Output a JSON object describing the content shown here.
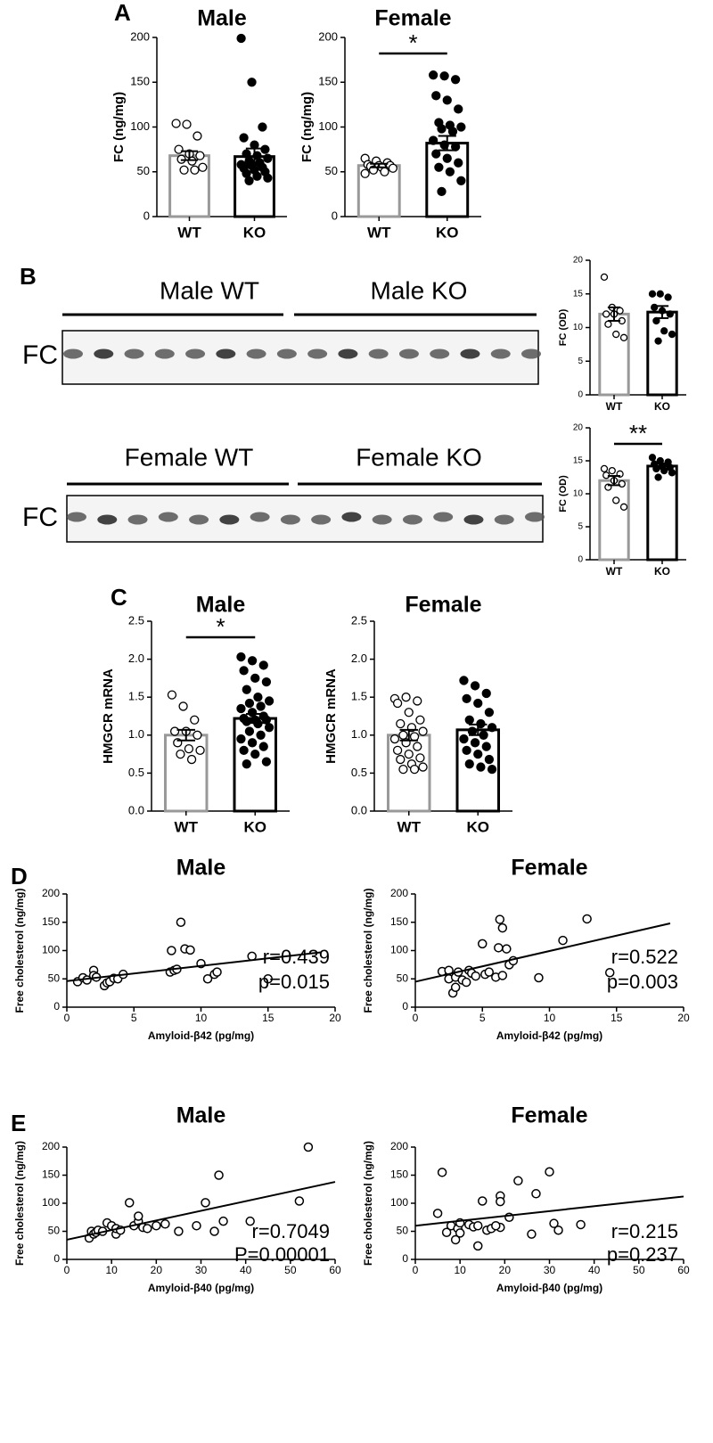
{
  "blots": [
    {
      "labels": [
        "Male WT",
        "Male KO"
      ],
      "row_label": "FC"
    },
    {
      "labels": [
        "Female WT",
        "Female KO"
      ],
      "row_label": "FC"
    }
  ],
  "chart_data": [
    {
      "type": "bar",
      "panel": "A",
      "title": "Male",
      "ylabel": "FC (ng/mg)",
      "categories": [
        "WT",
        "KO"
      ],
      "values": [
        68,
        67
      ],
      "errors": [
        5,
        9
      ],
      "points": [
        [
          104,
          103,
          90,
          75,
          70,
          68,
          64,
          62,
          55,
          52,
          52
        ],
        [
          199,
          150,
          100,
          88,
          80,
          75,
          70,
          68,
          65,
          62,
          60,
          58,
          57,
          55,
          54,
          52,
          50,
          48,
          45,
          43,
          40
        ]
      ],
      "bar_colors": [
        "#999999",
        "#000000"
      ],
      "point_fills": [
        "#ffffff",
        "#000000"
      ],
      "ylim": [
        0,
        200
      ],
      "yticks": [
        0,
        50,
        100,
        150,
        200
      ]
    },
    {
      "type": "bar",
      "title": "Female",
      "ylabel": "FC (ng/mg)",
      "categories": [
        "WT",
        "KO"
      ],
      "values": [
        57,
        82
      ],
      "errors": [
        2,
        8
      ],
      "points": [
        [
          65,
          62,
          60,
          58,
          57,
          57,
          56,
          55,
          54,
          52,
          50,
          48
        ],
        [
          158,
          157,
          153,
          135,
          130,
          120,
          105,
          102,
          100,
          98,
          95,
          85,
          80,
          78,
          70,
          65,
          60,
          55,
          50,
          40,
          28
        ]
      ],
      "bar_colors": [
        "#999999",
        "#000000"
      ],
      "point_fills": [
        "#ffffff",
        "#000000"
      ],
      "significance": "*",
      "ylim": [
        0,
        200
      ],
      "yticks": [
        0,
        50,
        100,
        150,
        200
      ]
    },
    {
      "type": "bar",
      "panel": "B",
      "ylabel": "FC (OD)",
      "categories": [
        "WT",
        "KO"
      ],
      "values": [
        12,
        12.3
      ],
      "errors": [
        1,
        0.9
      ],
      "points": [
        [
          17.5,
          13,
          12.5,
          12,
          12,
          11,
          10.5,
          9,
          8.5
        ],
        [
          15,
          15,
          14.5,
          13,
          12.5,
          12,
          11,
          9.5,
          9,
          8
        ]
      ],
      "bar_colors": [
        "#999999",
        "#000000"
      ],
      "point_fills": [
        "#ffffff",
        "#000000"
      ],
      "ylim": [
        0,
        20
      ],
      "yticks": [
        0,
        5,
        10,
        15,
        20
      ]
    },
    {
      "type": "bar",
      "ylabel": "FC (OD)",
      "categories": [
        "WT",
        "KO"
      ],
      "values": [
        12,
        14.2
      ],
      "errors": [
        0.7,
        0.4
      ],
      "points": [
        [
          13.8,
          13.5,
          13,
          12.8,
          12,
          11.5,
          11,
          9,
          8
        ],
        [
          15.5,
          15,
          14.8,
          14.5,
          14.2,
          14,
          13.8,
          13.5,
          13.2,
          12.5
        ]
      ],
      "bar_colors": [
        "#999999",
        "#000000"
      ],
      "point_fills": [
        "#ffffff",
        "#000000"
      ],
      "significance": "**",
      "ylim": [
        0,
        20
      ],
      "yticks": [
        0,
        5,
        10,
        15,
        20
      ]
    },
    {
      "type": "bar",
      "panel": "C",
      "title": "Male",
      "ylabel": "HMGCR mRNA",
      "categories": [
        "WT",
        "KO"
      ],
      "values": [
        1.0,
        1.22
      ],
      "errors": [
        0.07,
        0.06
      ],
      "points": [
        [
          1.53,
          1.38,
          1.2,
          1.05,
          1.05,
          1.0,
          0.9,
          0.82,
          0.8,
          0.75,
          0.68
        ],
        [
          2.03,
          1.98,
          1.92,
          1.85,
          1.75,
          1.7,
          1.6,
          1.5,
          1.45,
          1.42,
          1.38,
          1.35,
          1.3,
          1.25,
          1.22,
          1.2,
          1.2,
          1.18,
          1.15,
          1.1,
          1.05,
          1.0,
          0.95,
          0.9,
          0.85,
          0.8,
          0.75,
          0.65,
          0.62
        ]
      ],
      "bar_colors": [
        "#999999",
        "#000000"
      ],
      "point_fills": [
        "#ffffff",
        "#000000"
      ],
      "significance": "*",
      "ylim": [
        0,
        2.5
      ],
      "yticks": [
        {
          "value": 0,
          "label": "0.0"
        },
        0.5,
        {
          "value": 1,
          "label": "1.0"
        },
        1.5,
        {
          "value": 2,
          "label": "2.0"
        },
        2.5
      ]
    },
    {
      "type": "bar",
      "title": "Female",
      "ylabel": "HMGCR mRNA",
      "categories": [
        "WT",
        "KO"
      ],
      "values": [
        1.0,
        1.07
      ],
      "errors": [
        0.07,
        0.07
      ],
      "points": [
        [
          1.48,
          1.5,
          1.45,
          1.42,
          1.3,
          1.2,
          1.15,
          1.1,
          1.05,
          1.0,
          0.98,
          0.95,
          0.9,
          0.85,
          0.8,
          0.75,
          0.7,
          0.68,
          0.62,
          0.58,
          0.55,
          0.55
        ],
        [
          1.72,
          1.65,
          1.55,
          1.48,
          1.42,
          1.3,
          1.2,
          1.15,
          1.1,
          1.05,
          1.0,
          0.95,
          0.9,
          0.85,
          0.8,
          0.75,
          0.68,
          0.62,
          0.58,
          0.55
        ]
      ],
      "bar_colors": [
        "#999999",
        "#000000"
      ],
      "point_fills": [
        "#ffffff",
        "#000000"
      ],
      "ylim": [
        0,
        2.5
      ],
      "yticks": [
        {
          "value": 0,
          "label": "0.0"
        },
        0.5,
        {
          "value": 1,
          "label": "1.0"
        },
        1.5,
        {
          "value": 2,
          "label": "2.0"
        },
        2.5
      ]
    },
    {
      "type": "scatter",
      "panel": "D",
      "title": "Male",
      "xlabel": "Amyloid-β42 (pg/mg)",
      "ylabel": "Free cholesterol (ng/mg)",
      "x": [
        0.8,
        1.2,
        1.5,
        2,
        2,
        2.2,
        2.8,
        3,
        3.2,
        3.5,
        3.8,
        4.2,
        7.7,
        7.8,
        8,
        8.2,
        8.5,
        8.8,
        9.2,
        10,
        10.5,
        11,
        11.2,
        13.8,
        15
      ],
      "y": [
        45,
        52,
        48,
        65,
        56,
        53,
        38,
        43,
        45,
        51,
        50,
        58,
        62,
        100,
        65,
        67,
        150,
        103,
        101,
        77,
        50,
        58,
        62,
        90,
        50
      ],
      "fit": {
        "x": [
          0,
          19
        ],
        "y": [
          46,
          97
        ]
      },
      "annotations": [
        "r=0.439",
        "p=0.015"
      ],
      "color": "#000000",
      "xlim": [
        0,
        20
      ],
      "xticks": [
        0,
        5,
        10,
        15,
        20
      ],
      "ylim": [
        0,
        200
      ],
      "yticks": [
        0,
        50,
        100,
        150,
        200
      ]
    },
    {
      "type": "scatter",
      "title": "Female",
      "xlabel": "Amyloid-β42 (pg/mg)",
      "ylabel": "Free cholesterol (ng/mg)",
      "x": [
        2,
        2.5,
        2.5,
        2.8,
        3,
        3,
        3.2,
        3.5,
        3.8,
        4,
        4.2,
        4.5,
        5,
        5.2,
        5.5,
        6,
        6.2,
        6.3,
        6.5,
        6.8,
        7,
        7.3,
        9.2,
        11,
        12.8,
        14.5,
        6.5
      ],
      "y": [
        63,
        65,
        50,
        25,
        35,
        53,
        62,
        48,
        44,
        65,
        60,
        55,
        112,
        58,
        62,
        53,
        105,
        155,
        140,
        103,
        75,
        82,
        52,
        118,
        156,
        61,
        56
      ],
      "fit": {
        "x": [
          0,
          19
        ],
        "y": [
          45,
          148
        ]
      },
      "annotations": [
        "r=0.522",
        "p=0.003"
      ],
      "color": "#000000",
      "xlim": [
        0,
        20
      ],
      "xticks": [
        0,
        5,
        10,
        15,
        20
      ],
      "ylim": [
        0,
        200
      ],
      "yticks": [
        0,
        50,
        100,
        150,
        200
      ]
    },
    {
      "type": "scatter",
      "panel": "E",
      "title": "Male",
      "xlabel": "Amyloid-β40 (pg/mg)",
      "ylabel": "Free cholesterol (ng/mg)",
      "x": [
        5,
        5.5,
        6,
        6.5,
        7,
        8,
        9,
        10,
        11,
        11,
        12,
        14,
        15,
        16,
        16,
        17,
        18,
        20,
        22,
        25,
        29,
        31,
        33,
        34,
        35,
        41,
        52,
        54
      ],
      "y": [
        38,
        50,
        45,
        48,
        52,
        50,
        65,
        60,
        45,
        55,
        52,
        101,
        60,
        68,
        77,
        57,
        55,
        60,
        63,
        50,
        60,
        101,
        50,
        150,
        68,
        68,
        104,
        200
      ],
      "fit": {
        "x": [
          0,
          60
        ],
        "y": [
          35,
          138
        ]
      },
      "annotations": [
        "r=0.7049",
        "P=0.00001"
      ],
      "color": "#000000",
      "xlim": [
        0,
        60
      ],
      "xticks": [
        0,
        10,
        20,
        30,
        40,
        50,
        60
      ],
      "ylim": [
        0,
        200
      ],
      "yticks": [
        0,
        50,
        100,
        150,
        200
      ]
    },
    {
      "type": "scatter",
      "title": "Female",
      "xlabel": "Amyloid-β40 (pg/mg)",
      "ylabel": "Free cholesterol (ng/mg)",
      "x": [
        5,
        6,
        7,
        8,
        9,
        9.5,
        10,
        10,
        12,
        13,
        14,
        14,
        15,
        16,
        17,
        19,
        19,
        19,
        21,
        23,
        26,
        27,
        30,
        31,
        32,
        37,
        18
      ],
      "y": [
        82,
        155,
        48,
        60,
        35,
        55,
        65,
        47,
        62,
        58,
        24,
        60,
        104,
        52,
        55,
        113,
        103,
        57,
        75,
        140,
        45,
        117,
        156,
        64,
        52,
        62,
        60
      ],
      "fit": {
        "x": [
          0,
          60
        ],
        "y": [
          60,
          112
        ]
      },
      "annotations": [
        "r=0.215",
        "p=0.237"
      ],
      "color": "#000000",
      "xlim": [
        0,
        60
      ],
      "xticks": [
        0,
        10,
        20,
        30,
        40,
        50,
        60
      ],
      "ylim": [
        0,
        200
      ],
      "yticks": [
        0,
        50,
        100,
        150,
        200
      ]
    }
  ]
}
